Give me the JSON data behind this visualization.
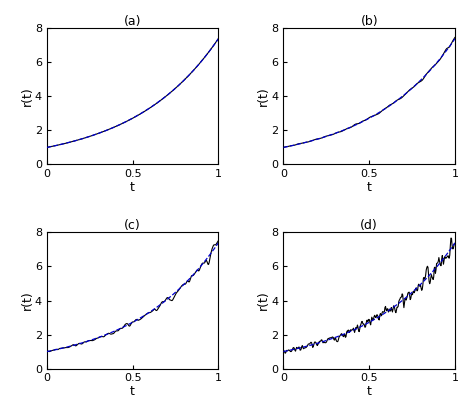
{
  "title_a": "(a)",
  "title_b": "(b)",
  "title_c": "(c)",
  "title_d": "(d)",
  "xlabel": "t",
  "ylabel": "r(t)",
  "xlim": [
    0,
    1
  ],
  "ylim": [
    0,
    8
  ],
  "yticks": [
    0,
    2,
    4,
    6,
    8
  ],
  "xticks": [
    0,
    0.5,
    1
  ],
  "xtick_labels": [
    "0",
    "0.5",
    "1"
  ],
  "exact_color": "#0000cc",
  "noisy_color": "#000000",
  "exact_lw": 0.9,
  "noisy_lw": 0.8,
  "noise_levels": [
    0.0,
    0.03,
    0.05,
    0.1
  ],
  "n_points": 300,
  "seed": 7,
  "t0": 0.0,
  "t1": 1.0,
  "figsize": [
    4.69,
    4.05
  ],
  "dpi": 100
}
